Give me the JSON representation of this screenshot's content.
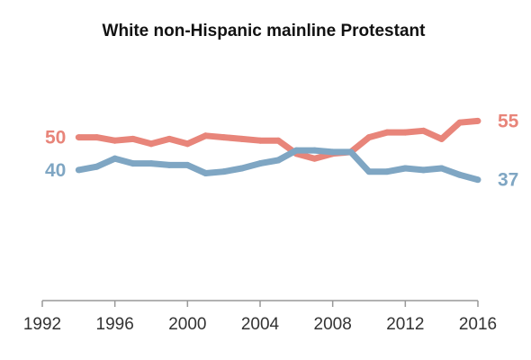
{
  "chart_data": {
    "type": "line",
    "title": "White non-Hispanic mainline Protestant",
    "xlabel": "",
    "ylabel": "",
    "xlim": [
      1992,
      2016
    ],
    "ylim": [
      0,
      70
    ],
    "x_ticks": [
      "1992",
      "1996",
      "2000",
      "2004",
      "2008",
      "2012",
      "2016"
    ],
    "grid": false,
    "legend": "none",
    "x": [
      1994,
      1995,
      1996,
      1997,
      1998,
      1999,
      2000,
      2001,
      2002,
      2003,
      2004,
      2005,
      2006,
      2007,
      2008,
      2009,
      2010,
      2011,
      2012,
      2013,
      2014,
      2015,
      2016
    ],
    "series": [
      {
        "color": "#e8857a",
        "values": [
          50,
          50,
          49,
          49.5,
          48,
          49.5,
          48,
          50.5,
          50,
          49.5,
          49,
          49,
          45,
          43.5,
          45,
          45.5,
          50,
          51.5,
          51.5,
          52,
          49.5,
          54.5,
          55
        ],
        "start_label": "50",
        "end_label": "55"
      },
      {
        "color": "#7fa6c3",
        "values": [
          40,
          41,
          43.5,
          42,
          42,
          41.5,
          41.5,
          39,
          39.5,
          40.5,
          42,
          43,
          46,
          46,
          45.5,
          45.5,
          39.5,
          39.5,
          40.5,
          40,
          40.5,
          38.5,
          37
        ],
        "start_label": "40",
        "end_label": "37"
      }
    ]
  }
}
